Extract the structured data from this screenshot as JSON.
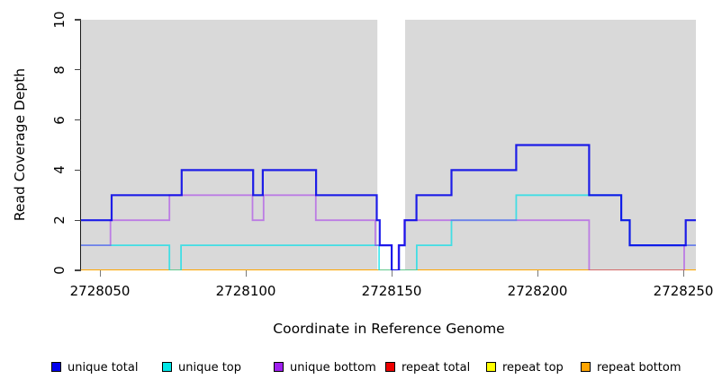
{
  "y_axis": {
    "title": "Read Coverage Depth"
  },
  "x_axis": {
    "title": "Coordinate in Reference Genome"
  },
  "legend": {
    "items": [
      {
        "label": "unique total",
        "color": "#0000ee"
      },
      {
        "label": "unique top",
        "color": "#00e8e8"
      },
      {
        "label": "unique bottom",
        "color": "#a020f0"
      },
      {
        "label": "repeat total",
        "color": "#ee0000"
      },
      {
        "label": "repeat top",
        "color": "#ffff00"
      },
      {
        "label": "repeat bottom",
        "color": "#ffa500"
      }
    ]
  },
  "chart_data": {
    "type": "line",
    "step": true,
    "title": "",
    "xlabel": "Coordinate in Reference Genome",
    "ylabel": "Read Coverage Depth",
    "xlim": [
      2728043.5,
      2728254.3
    ],
    "ylim": [
      0,
      10
    ],
    "x_ticks": [
      2728050,
      2728100,
      2728150,
      2728200,
      2728250
    ],
    "y_ticks": [
      0,
      2,
      4,
      6,
      8,
      10
    ],
    "plot_bg": "#d9d9d9",
    "masked_region": {
      "x0": 2728145.1,
      "x1": 2728154.6,
      "color": "#ffffff"
    },
    "grid": false,
    "legend_position": "bottom",
    "series": [
      {
        "name": "repeat total",
        "color": "#dd0000",
        "opacity": 1,
        "width": 1.5,
        "points": [
          [
            2728043.5,
            0
          ],
          [
            2728254.3,
            0
          ]
        ]
      },
      {
        "name": "repeat top",
        "color": "#ffff00",
        "opacity": 1,
        "width": 1.5,
        "points": [
          [
            2728043.5,
            0
          ],
          [
            2728254.3,
            0
          ]
        ]
      },
      {
        "name": "repeat bottom",
        "color": "#ffa500",
        "opacity": 1,
        "width": 2,
        "points": [
          [
            2728043.5,
            0
          ],
          [
            2728254.3,
            0
          ]
        ]
      },
      {
        "name": "unique top",
        "color": "#00e0e8",
        "opacity": 0.7,
        "width": 1.8,
        "points": [
          [
            2728043.5,
            1
          ],
          [
            2728073.8,
            0
          ],
          [
            2728077.8,
            1
          ],
          [
            2728145.7,
            0
          ],
          [
            2728158.6,
            1
          ],
          [
            2728170.5,
            2
          ],
          [
            2728192.7,
            3
          ],
          [
            2728228.7,
            2
          ],
          [
            2728231.6,
            1
          ],
          [
            2728254.3,
            1
          ]
        ]
      },
      {
        "name": "unique bottom",
        "color": "#a020f0",
        "opacity": 0.5,
        "width": 1.8,
        "points": [
          [
            2728043.5,
            1
          ],
          [
            2728053.6,
            2
          ],
          [
            2728073.8,
            3
          ],
          [
            2728102.3,
            2
          ],
          [
            2728106.1,
            3
          ],
          [
            2728124,
            2
          ],
          [
            2728144.4,
            1
          ],
          [
            2728150,
            0
          ],
          [
            2728152.3,
            1
          ],
          [
            2728154.3,
            2
          ],
          [
            2728217.7,
            0
          ],
          [
            2728250.3,
            1
          ],
          [
            2728254.3,
            1
          ]
        ]
      },
      {
        "name": "unique total",
        "color": "#0808e8",
        "opacity": 0.9,
        "width": 2.2,
        "points": [
          [
            2728043.5,
            2
          ],
          [
            2728054,
            3
          ],
          [
            2728078,
            4
          ],
          [
            2728102.5,
            3
          ],
          [
            2728105.8,
            4
          ],
          [
            2728124.1,
            3
          ],
          [
            2728144.9,
            2
          ],
          [
            2728145.9,
            1
          ],
          [
            2728150,
            0
          ],
          [
            2728152.5,
            1
          ],
          [
            2728154.5,
            2
          ],
          [
            2728158.5,
            3
          ],
          [
            2728170.5,
            4
          ],
          [
            2728192.7,
            5
          ],
          [
            2728217.7,
            3
          ],
          [
            2728228.7,
            2
          ],
          [
            2728231.6,
            1
          ],
          [
            2728250.8,
            2
          ],
          [
            2728254.3,
            2
          ]
        ]
      }
    ]
  }
}
